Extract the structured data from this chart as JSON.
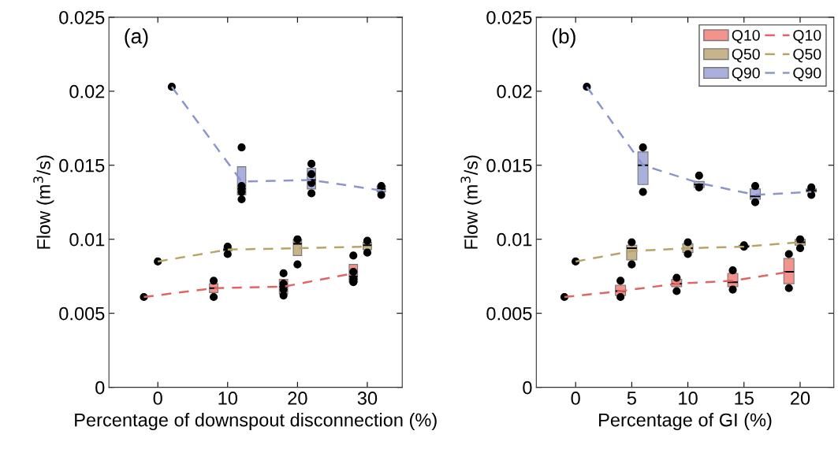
{
  "chart_data": [
    {
      "type": "box",
      "xlabel": "Percentage of downspout disconnection (%)",
      "ylabel": "Flow (m$^{3}$/s)",
      "annotations": [
        "(a)"
      ],
      "xlim": [
        -7,
        35
      ],
      "xticks": [
        0,
        10,
        20,
        30
      ],
      "ylim": [
        0,
        0.025
      ],
      "yticks": [
        0,
        0.005,
        0.01,
        0.015,
        0.02,
        0.025
      ],
      "legend": false,
      "series": [
        {
          "type": "box",
          "color": "#f4928c",
          "x": [
            8,
            18,
            28
          ],
          "boxes": [
            {
              "low": 0.0064,
              "q1": 0.0064,
              "median": 0.0067,
              "q3": 0.007,
              "high": 0.007
            },
            {
              "low": 0.0063,
              "q1": 0.0063,
              "median": 0.0068,
              "q3": 0.0073,
              "high": 0.0073
            },
            {
              "low": 0.0071,
              "q1": 0.0071,
              "median": 0.0075,
              "q3": 0.0083,
              "high": 0.0083
            }
          ]
        },
        {
          "type": "box",
          "color": "#c8b48a",
          "x": [
            10,
            20,
            30
          ],
          "boxes": [
            {
              "low": 0.0092,
              "q1": 0.0092,
              "median": 0.0093,
              "q3": 0.0094,
              "high": 0.0094
            },
            {
              "low": 0.0089,
              "q1": 0.0089,
              "median": 0.0097,
              "q3": 0.01,
              "high": 0.01
            },
            {
              "low": 0.0093,
              "q1": 0.0093,
              "median": 0.0096,
              "q3": 0.0098,
              "high": 0.0098
            }
          ]
        },
        {
          "type": "box",
          "color": "#a9b0dc",
          "x": [
            12,
            22,
            32
          ],
          "boxes": [
            {
              "low": 0.013,
              "q1": 0.013,
              "median": 0.0134,
              "q3": 0.0149,
              "high": 0.0149
            },
            {
              "low": 0.0134,
              "q1": 0.0134,
              "median": 0.014,
              "q3": 0.0148,
              "high": 0.0148
            },
            {
              "low": 0.0132,
              "q1": 0.0132,
              "median": 0.0134,
              "q3": 0.0136,
              "high": 0.0136
            }
          ]
        },
        {
          "type": "line",
          "color": "#e06666",
          "line_style": "dashed",
          "x": [
            -2,
            8,
            18,
            28
          ],
          "values": [
            0.0061,
            0.0067,
            0.0068,
            0.0077
          ]
        },
        {
          "type": "line",
          "color": "#b8a468",
          "line_style": "dashed",
          "x": [
            0,
            10,
            20,
            30
          ],
          "values": [
            0.0085,
            0.0093,
            0.0094,
            0.0095
          ]
        },
        {
          "type": "line",
          "color": "#8c96cc",
          "line_style": "dashed",
          "x": [
            2,
            12,
            22,
            32
          ],
          "values": [
            0.0203,
            0.0139,
            0.014,
            0.0133
          ]
        },
        {
          "type": "scatter",
          "color": "#000000",
          "marker": "circle",
          "x": [
            -2,
            8,
            8,
            18,
            18,
            18,
            18,
            28,
            28,
            28,
            28,
            0,
            10,
            10,
            20,
            20,
            30,
            30,
            2,
            12,
            12,
            12,
            12,
            22,
            22,
            22,
            22,
            32,
            32
          ],
          "values": [
            0.0061,
            0.0072,
            0.0061,
            0.0077,
            0.0062,
            0.007,
            0.0066,
            0.0089,
            0.0071,
            0.0078,
            0.0073,
            0.0085,
            0.0095,
            0.009,
            0.01,
            0.0083,
            0.0099,
            0.0091,
            0.0203,
            0.0162,
            0.0127,
            0.0136,
            0.0132,
            0.0151,
            0.0131,
            0.0144,
            0.0138,
            0.0136,
            0.013
          ]
        }
      ]
    },
    {
      "type": "box",
      "xlabel": "Percentage of GI (%)",
      "ylabel": "Flow (m$^{3}$/s)",
      "annotations": [
        "(b)"
      ],
      "xlim": [
        -3.5,
        23
      ],
      "xticks": [
        0,
        5,
        10,
        15,
        20
      ],
      "ylim": [
        0,
        0.025
      ],
      "yticks": [
        0,
        0.005,
        0.01,
        0.015,
        0.02,
        0.025
      ],
      "legend": "top right",
      "series": [
        {
          "type": "box",
          "name": "Q10",
          "color": "#f4928c",
          "x": [
            4,
            9,
            14,
            19
          ],
          "boxes": [
            {
              "low": 0.0062,
              "q1": 0.0062,
              "median": 0.0065,
              "q3": 0.0069,
              "high": 0.0069
            },
            {
              "low": 0.0068,
              "q1": 0.0068,
              "median": 0.007,
              "q3": 0.0073,
              "high": 0.0073
            },
            {
              "low": 0.0068,
              "q1": 0.0068,
              "median": 0.0071,
              "q3": 0.0077,
              "high": 0.0077
            },
            {
              "low": 0.007,
              "q1": 0.007,
              "median": 0.0078,
              "q3": 0.0087,
              "high": 0.0087
            }
          ]
        },
        {
          "type": "box",
          "name": "Q50",
          "color": "#c8b48a",
          "x": [
            5,
            10,
            15,
            20
          ],
          "boxes": [
            {
              "low": 0.0086,
              "q1": 0.0086,
              "median": 0.0094,
              "q3": 0.0096,
              "high": 0.0096
            },
            {
              "low": 0.0091,
              "q1": 0.0091,
              "median": 0.0094,
              "q3": 0.0097,
              "high": 0.0097
            },
            {
              "low": 0.0095,
              "q1": 0.0095,
              "median": 0.0095,
              "q3": 0.0096,
              "high": 0.0096
            },
            {
              "low": 0.0096,
              "q1": 0.0096,
              "median": 0.0098,
              "q3": 0.01,
              "high": 0.01
            }
          ]
        },
        {
          "type": "box",
          "name": "Q90",
          "color": "#a9b0dc",
          "x": [
            6,
            11,
            16,
            21
          ],
          "boxes": [
            {
              "low": 0.0137,
              "q1": 0.0137,
              "median": 0.015,
              "q3": 0.0159,
              "high": 0.0159
            },
            {
              "low": 0.0135,
              "q1": 0.0135,
              "median": 0.0137,
              "q3": 0.0139,
              "high": 0.0139
            },
            {
              "low": 0.0127,
              "q1": 0.0127,
              "median": 0.0129,
              "q3": 0.0134,
              "high": 0.0134
            },
            {
              "low": 0.0132,
              "q1": 0.0132,
              "median": 0.0133,
              "q3": 0.0134,
              "high": 0.0134
            }
          ]
        },
        {
          "type": "line",
          "name": "Q10",
          "color": "#e06666",
          "line_style": "dashed",
          "x": [
            -1,
            4,
            9,
            14,
            19
          ],
          "values": [
            0.0061,
            0.0065,
            0.007,
            0.0072,
            0.0078
          ]
        },
        {
          "type": "line",
          "name": "Q50",
          "color": "#b8a468",
          "line_style": "dashed",
          "x": [
            0,
            5,
            10,
            15,
            20
          ],
          "values": [
            0.0085,
            0.0092,
            0.0094,
            0.0095,
            0.0098
          ]
        },
        {
          "type": "line",
          "name": "Q90",
          "color": "#8c96cc",
          "line_style": "dashed",
          "x": [
            1,
            6,
            11,
            16,
            21
          ],
          "values": [
            0.0203,
            0.015,
            0.0138,
            0.013,
            0.0132
          ]
        },
        {
          "type": "scatter",
          "color": "#000000",
          "marker": "circle",
          "x": [
            -1,
            4,
            4,
            9,
            9,
            14,
            14,
            19,
            19,
            0,
            5,
            5,
            10,
            10,
            15,
            15,
            20,
            20,
            1,
            6,
            6,
            11,
            11,
            16,
            16,
            21,
            21
          ],
          "values": [
            0.0061,
            0.0072,
            0.0061,
            0.0074,
            0.0065,
            0.0079,
            0.0066,
            0.009,
            0.0067,
            0.0085,
            0.0098,
            0.0083,
            0.0098,
            0.009,
            0.0096,
            0.0095,
            0.01,
            0.0094,
            0.0203,
            0.0162,
            0.0132,
            0.0143,
            0.0135,
            0.0136,
            0.0125,
            0.0135,
            0.013
          ]
        }
      ]
    }
  ]
}
